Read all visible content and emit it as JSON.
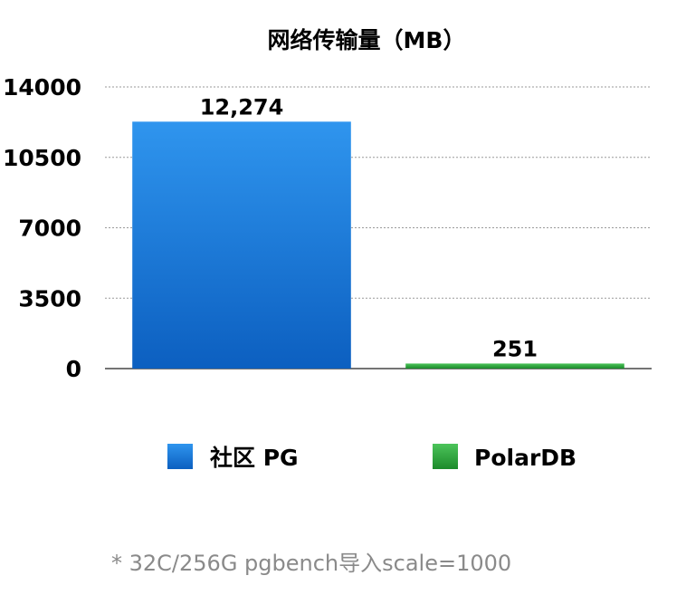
{
  "chart_data": {
    "type": "bar",
    "title": "网络传输量（MB）",
    "categories": [
      "社区 PG",
      "PolarDB"
    ],
    "values": [
      12274,
      251
    ],
    "value_labels": [
      "12,274",
      "251"
    ],
    "colors": [
      "#1e73d6",
      "#2a9d3a"
    ],
    "ylim": [
      0,
      14000
    ],
    "yticks": [
      0,
      3500,
      7000,
      10500,
      14000
    ],
    "grid": true,
    "legend": "bottom",
    "xlabel": "",
    "ylabel": ""
  },
  "footnote": "* 32C/256G pgbench导入scale=1000"
}
